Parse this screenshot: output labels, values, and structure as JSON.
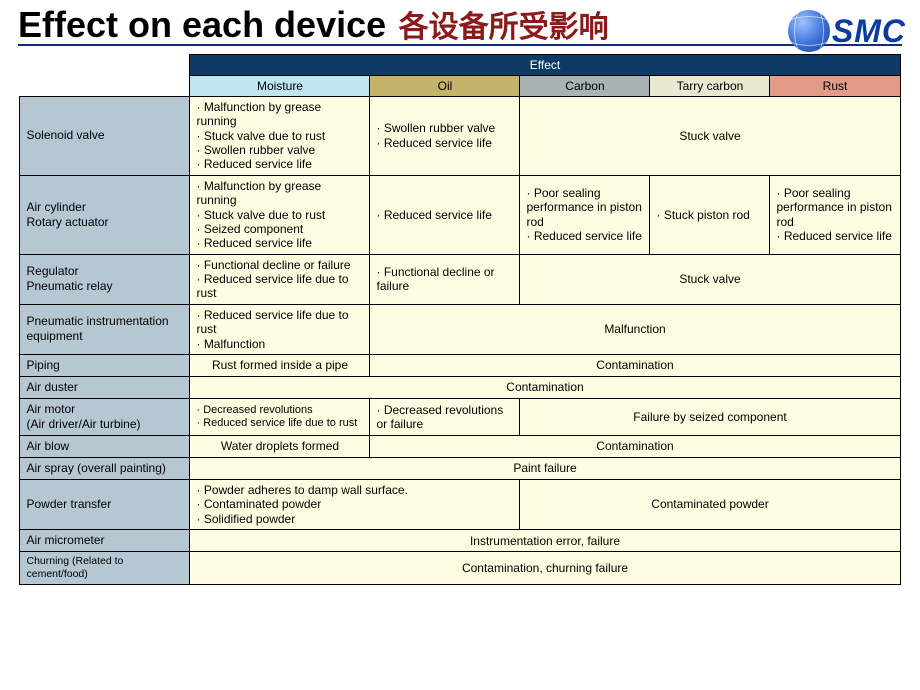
{
  "logo": {
    "text": "SMC"
  },
  "title": {
    "en": "Effect on each device",
    "cn": "各设备所受影响"
  },
  "colors": {
    "effect_header_bg": "#0d3b66",
    "moisture_bg": "#bfe6ef",
    "oil_bg": "#c4b36a",
    "carbon_bg": "#a9b3b3",
    "tarry_bg": "#e7e9d0",
    "rust_bg": "#e49a88",
    "device_bg": "#b5c7d3",
    "cell_bg": "#fefde2",
    "rule_color": "#1a2a7a",
    "title_cn_color": "#8b1a1a"
  },
  "headers": {
    "effect": "Effect",
    "moisture": "Moisture",
    "oil": "Oil",
    "carbon": "Carbon",
    "tarry": "Tarry carbon",
    "rust": "Rust"
  },
  "rows": {
    "solenoid": {
      "device": "Solenoid valve",
      "moisture": "· Malfunction by grease running\n· Stuck valve due to rust\n· Swollen rubber valve\n· Reduced service life",
      "oil": "· Swollen rubber valve\n· Reduced service life",
      "rest": "Stuck valve"
    },
    "cylinder": {
      "device": "Air cylinder\nRotary actuator",
      "moisture": "· Malfunction by grease running\n· Stuck valve due to rust\n· Seized component\n· Reduced service life",
      "oil": "· Reduced service life",
      "carbon": "· Poor sealing performance in piston rod\n· Reduced service life",
      "tarry": "· Stuck piston rod",
      "rust": "· Poor sealing performance in piston rod\n· Reduced service life"
    },
    "regulator": {
      "device": "Regulator\nPneumatic relay",
      "moisture": "· Functional decline or failure\n· Reduced service life due to rust",
      "oil": "· Functional decline or failure",
      "rest": "Stuck valve"
    },
    "instrumentation": {
      "device": "Pneumatic instrumentation equipment",
      "moisture": "· Reduced service life due to rust\n· Malfunction",
      "rest": "Malfunction"
    },
    "piping": {
      "device": "Piping",
      "moisture": "Rust formed inside a pipe",
      "rest": "Contamination"
    },
    "duster": {
      "device": "Air duster",
      "all": "Contamination"
    },
    "motor": {
      "device": "Air motor\n(Air driver/Air turbine)",
      "moisture": "· Decreased revolutions\n· Reduced service life due to rust",
      "oil": "· Decreased revolutions or failure",
      "rest": "Failure by seized component"
    },
    "blow": {
      "device": "Air blow",
      "moisture": "Water droplets formed",
      "rest": "Contamination"
    },
    "spray": {
      "device": "Air spray (overall painting)",
      "all": "Paint failure"
    },
    "powder": {
      "device": "Powder transfer",
      "left": "· Powder adheres to damp wall surface.\n· Contaminated powder\n· Solidified powder",
      "rest": "Contaminated powder"
    },
    "micrometer": {
      "device": "Air micrometer",
      "all": "Instrumentation error, failure"
    },
    "churning": {
      "device": "Churning (Related to cement/food)",
      "all": "Contamination, churning failure"
    }
  }
}
